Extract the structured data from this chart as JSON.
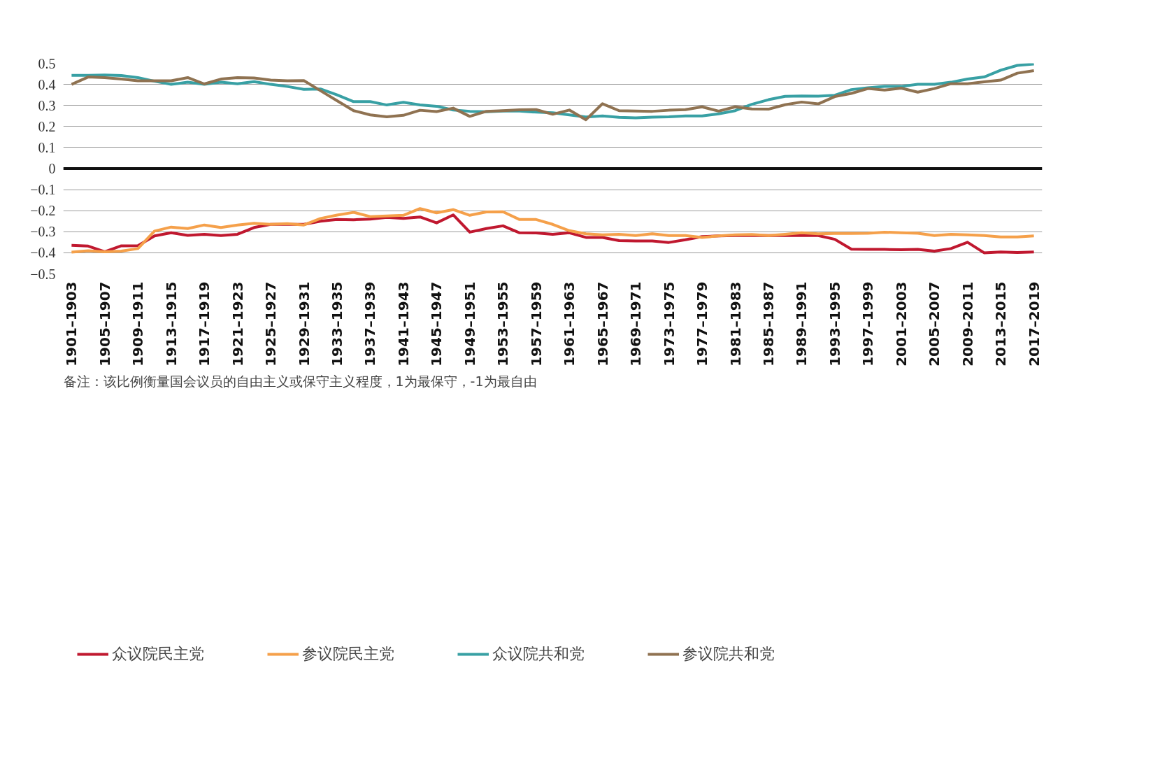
{
  "chart_data": {
    "type": "line",
    "categories": [
      "1901–1903",
      null,
      "1905–1907",
      null,
      "1909–1911",
      null,
      "1913–1915",
      null,
      "1917–1919",
      null,
      "1921–1923",
      null,
      "1925–1927",
      null,
      "1929–1931",
      null,
      "1933–1935",
      null,
      "1937–1939",
      null,
      "1941–1943",
      null,
      "1945–1947",
      null,
      "1949–1951",
      null,
      "1953–1955",
      null,
      "1957–1959",
      null,
      "1961–1963",
      null,
      "1965–1967",
      null,
      "1969–1971",
      null,
      "1973–1975",
      null,
      "1977–1979",
      null,
      "1981–1983",
      null,
      "1985–1987",
      null,
      "1989–1991",
      null,
      "1993–1995",
      null,
      "1997–1999",
      null,
      "2001–2003",
      null,
      "2005–2007",
      null,
      "2009–2011",
      null,
      "2013–2015",
      null,
      "2017–2019"
    ],
    "series": [
      {
        "name": "众议院民主党",
        "color": "#c0182f",
        "values": [
          -0.365,
          -0.368,
          -0.395,
          -0.367,
          -0.366,
          -0.32,
          -0.305,
          -0.317,
          -0.312,
          -0.318,
          -0.312,
          -0.28,
          -0.265,
          -0.265,
          -0.265,
          -0.25,
          -0.242,
          -0.243,
          -0.24,
          -0.232,
          -0.237,
          -0.23,
          -0.258,
          -0.22,
          -0.302,
          -0.285,
          -0.272,
          -0.305,
          -0.306,
          -0.312,
          -0.305,
          -0.327,
          -0.327,
          -0.342,
          -0.344,
          -0.344,
          -0.351,
          -0.338,
          -0.323,
          -0.32,
          -0.318,
          -0.317,
          -0.318,
          -0.318,
          -0.318,
          -0.318,
          -0.336,
          -0.383,
          -0.384,
          -0.384,
          -0.385,
          -0.384,
          -0.392,
          -0.38,
          -0.35,
          -0.4,
          -0.396,
          -0.399,
          -0.396
        ]
      },
      {
        "name": "参议院民主党",
        "color": "#f5a04a",
        "values": [
          -0.397,
          -0.39,
          -0.395,
          -0.392,
          -0.38,
          -0.297,
          -0.278,
          -0.285,
          -0.268,
          -0.28,
          -0.268,
          -0.26,
          -0.265,
          -0.262,
          -0.268,
          -0.237,
          -0.221,
          -0.208,
          -0.228,
          -0.225,
          -0.222,
          -0.19,
          -0.21,
          -0.195,
          -0.222,
          -0.206,
          -0.205,
          -0.242,
          -0.242,
          -0.265,
          -0.295,
          -0.31,
          -0.315,
          -0.312,
          -0.318,
          -0.31,
          -0.318,
          -0.318,
          -0.327,
          -0.32,
          -0.315,
          -0.313,
          -0.318,
          -0.312,
          -0.305,
          -0.31,
          -0.308,
          -0.308,
          -0.307,
          -0.302,
          -0.305,
          -0.307,
          -0.318,
          -0.312,
          -0.315,
          -0.318,
          -0.325,
          -0.325,
          -0.32
        ]
      },
      {
        "name": "众议院共和党",
        "color": "#38a0a4",
        "values": [
          0.443,
          0.443,
          0.444,
          0.442,
          0.432,
          0.415,
          0.4,
          0.41,
          0.4,
          0.41,
          0.403,
          0.413,
          0.4,
          0.39,
          0.376,
          0.378,
          0.35,
          0.318,
          0.318,
          0.302,
          0.315,
          0.302,
          0.296,
          0.278,
          0.272,
          0.27,
          0.273,
          0.273,
          0.268,
          0.265,
          0.255,
          0.245,
          0.25,
          0.243,
          0.241,
          0.244,
          0.246,
          0.25,
          0.25,
          0.26,
          0.275,
          0.305,
          0.327,
          0.343,
          0.345,
          0.344,
          0.348,
          0.375,
          0.384,
          0.39,
          0.39,
          0.4,
          0.4,
          0.41,
          0.425,
          0.435,
          0.467,
          0.49,
          0.497
        ]
      },
      {
        "name": "参议院共和党",
        "color": "#8f7251",
        "values": [
          0.4,
          0.435,
          0.432,
          0.425,
          0.417,
          0.417,
          0.417,
          0.432,
          0.402,
          0.425,
          0.432,
          0.43,
          0.42,
          0.417,
          0.418,
          0.37,
          0.322,
          0.275,
          0.255,
          0.246,
          0.253,
          0.277,
          0.271,
          0.287,
          0.248,
          0.272,
          0.275,
          0.279,
          0.28,
          0.258,
          0.278,
          0.232,
          0.308,
          0.275,
          0.273,
          0.272,
          0.277,
          0.28,
          0.293,
          0.273,
          0.293,
          0.283,
          0.282,
          0.303,
          0.316,
          0.307,
          0.342,
          0.357,
          0.38,
          0.373,
          0.382,
          0.363,
          0.38,
          0.403,
          0.403,
          0.412,
          0.42,
          0.453,
          0.465
        ]
      }
    ],
    "ylim": [
      -0.5,
      0.5
    ],
    "yticks": [
      0.5,
      0.4,
      0.3,
      0.2,
      0.1,
      0,
      {
        "value": -0.1,
        "label": "−0.1"
      },
      {
        "value": -0.2,
        "label": "−0.2"
      },
      {
        "value": -0.3,
        "label": "−0.3"
      },
      {
        "value": -0.4,
        "label": "−0.4"
      },
      {
        "value": -0.5,
        "label": "−0.5"
      }
    ],
    "grid": "y",
    "legend": "bottom",
    "ref_lines": [
      {
        "axis": "y",
        "value": 0,
        "color": "#111111"
      }
    ],
    "annotations": [
      "备注：该比例衡量国会议员的自由主义或保守主义程度，1为最保守，-1为最自由"
    ]
  }
}
